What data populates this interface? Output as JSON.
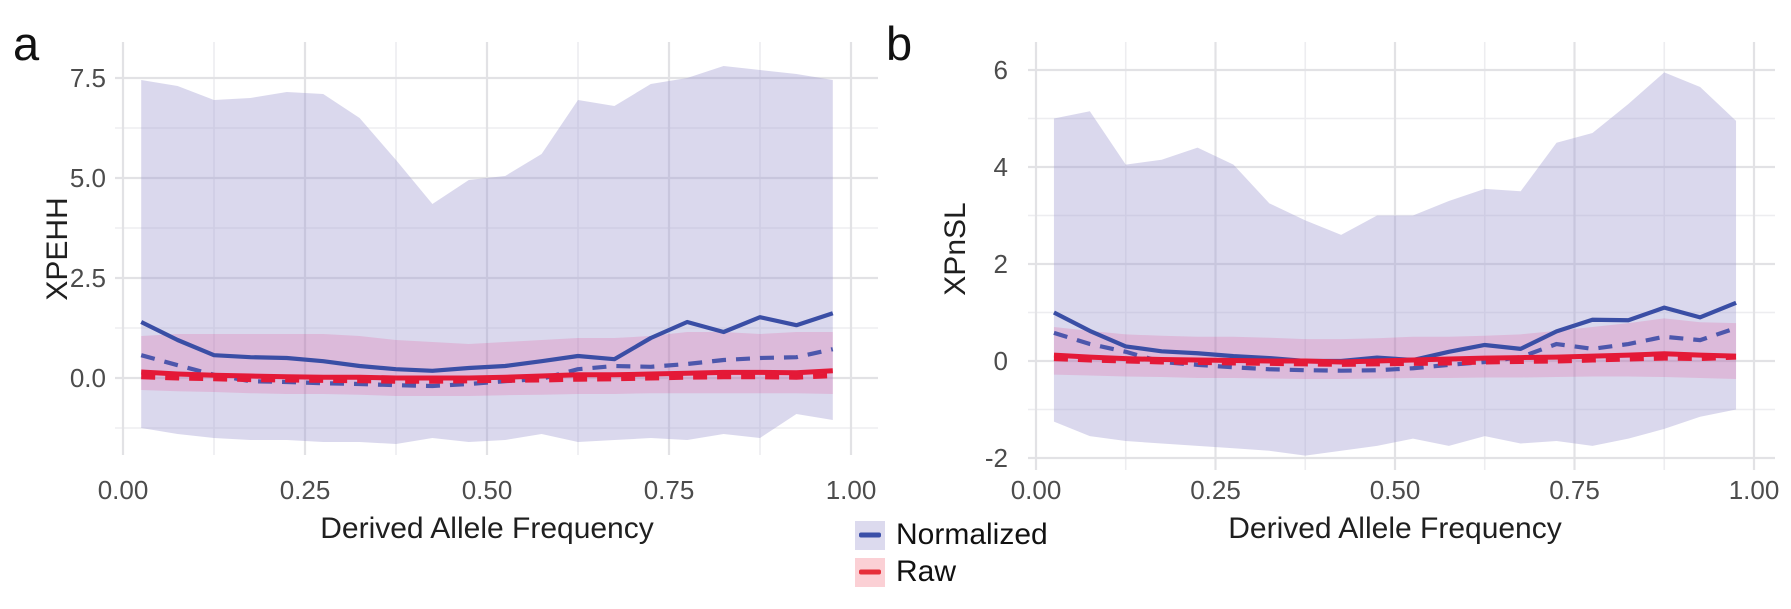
{
  "chart_data": {
    "type": "area",
    "x": [
      0.025,
      0.075,
      0.125,
      0.175,
      0.225,
      0.275,
      0.325,
      0.375,
      0.425,
      0.475,
      0.525,
      0.575,
      0.625,
      0.675,
      0.725,
      0.775,
      0.825,
      0.875,
      0.925,
      0.975
    ],
    "xlim": [
      0,
      1
    ],
    "grid": true,
    "legend_position": "bottom-center",
    "panels": [
      {
        "letter": "a",
        "ylabel": "XPEHH",
        "xlabel": "Derived Allele Frequency",
        "x_ticks": [
          0,
          0.25,
          0.5,
          0.75,
          1.0
        ],
        "x_tick_labels": [
          "0.00",
          "0.25",
          "0.50",
          "0.75",
          "1.00"
        ],
        "x_minor": [
          0.125,
          0.375,
          0.625,
          0.875
        ],
        "y_ticks": [
          0,
          2.5,
          5,
          7.5
        ],
        "y_tick_labels": [
          "0.0",
          "2.5",
          "5.0",
          "7.5"
        ],
        "y_minor": [
          -1.25,
          1.25,
          3.75,
          6.25
        ],
        "ylim": [
          -1.9,
          8.15
        ],
        "ribbons": [
          {
            "name": "normalized-range",
            "fill": "normalized_fill",
            "upper": [
              7.45,
              7.3,
              6.95,
              7.0,
              7.15,
              7.1,
              6.5,
              5.45,
              4.35,
              4.95,
              5.05,
              5.6,
              6.95,
              6.8,
              7.35,
              7.5,
              7.8,
              7.7,
              7.6,
              7.45
            ],
            "lower": [
              -1.25,
              -1.4,
              -1.5,
              -1.55,
              -1.55,
              -1.6,
              -1.6,
              -1.65,
              -1.5,
              -1.6,
              -1.55,
              -1.4,
              -1.6,
              -1.55,
              -1.5,
              -1.55,
              -1.4,
              -1.5,
              -0.9,
              -1.05
            ]
          },
          {
            "name": "raw-range",
            "fill": "raw_fill",
            "upper": [
              1.05,
              1.1,
              1.1,
              1.1,
              1.1,
              1.1,
              1.05,
              0.95,
              0.9,
              0.85,
              0.9,
              0.95,
              1.0,
              1.0,
              1.05,
              1.15,
              1.15,
              1.1,
              1.15,
              1.15
            ],
            "lower": [
              -0.3,
              -0.33,
              -0.35,
              -0.38,
              -0.4,
              -0.4,
              -0.42,
              -0.45,
              -0.45,
              -0.45,
              -0.43,
              -0.42,
              -0.4,
              -0.4,
              -0.38,
              -0.38,
              -0.38,
              -0.38,
              -0.38,
              -0.4
            ]
          }
        ],
        "lines": [
          {
            "name": "normalized-dashed",
            "color": "normalized_dashed",
            "style": "dashed",
            "width": 4.2,
            "values": [
              0.57,
              0.32,
              0.08,
              -0.08,
              -0.1,
              -0.13,
              -0.15,
              -0.18,
              -0.2,
              -0.15,
              -0.08,
              -0.02,
              0.22,
              0.3,
              0.28,
              0.35,
              0.45,
              0.5,
              0.52,
              0.72
            ]
          },
          {
            "name": "normalized-solid",
            "color": "normalized_line",
            "style": "solid",
            "width": 4.2,
            "values": [
              1.4,
              0.95,
              0.57,
              0.52,
              0.5,
              0.42,
              0.3,
              0.22,
              0.18,
              0.25,
              0.3,
              0.42,
              0.55,
              0.47,
              1.0,
              1.4,
              1.15,
              1.52,
              1.32,
              1.62
            ]
          },
          {
            "name": "raw-dashed",
            "color": "raw_line",
            "style": "dashed",
            "width": 5,
            "values": [
              0.03,
              0.0,
              -0.02,
              -0.04,
              -0.05,
              -0.06,
              -0.07,
              -0.08,
              -0.08,
              -0.07,
              -0.06,
              -0.05,
              -0.03,
              -0.02,
              0.0,
              0.02,
              0.03,
              0.03,
              0.02,
              0.06
            ]
          },
          {
            "name": "raw-solid",
            "color": "raw_line",
            "style": "solid",
            "width": 5,
            "values": [
              0.15,
              0.1,
              0.07,
              0.05,
              0.03,
              0.02,
              0.02,
              0.0,
              0.0,
              0.0,
              0.02,
              0.05,
              0.08,
              0.08,
              0.1,
              0.12,
              0.14,
              0.14,
              0.13,
              0.18
            ]
          }
        ]
      },
      {
        "letter": "b",
        "ylabel": "XPnSL",
        "xlabel": "Derived Allele Frequency",
        "x_ticks": [
          0,
          0.25,
          0.5,
          0.75,
          1.0
        ],
        "x_tick_labels": [
          "0.00",
          "0.25",
          "0.50",
          "0.75",
          "1.00"
        ],
        "x_minor": [
          0.125,
          0.375,
          0.625,
          0.875
        ],
        "y_ticks": [
          -2,
          0,
          2,
          4,
          6
        ],
        "y_tick_labels": [
          "-2",
          "0",
          "2",
          "4",
          "6"
        ],
        "y_minor": [
          -1,
          1,
          3,
          5
        ],
        "ylim": [
          -2.25,
          6.35
        ],
        "ribbons": [
          {
            "name": "normalized-range",
            "fill": "normalized_fill",
            "upper": [
              5.0,
              5.15,
              4.05,
              4.15,
              4.4,
              4.05,
              3.25,
              2.9,
              2.6,
              3.0,
              3.0,
              3.3,
              3.55,
              3.5,
              4.5,
              4.7,
              5.3,
              5.95,
              5.65,
              4.95
            ],
            "lower": [
              -1.25,
              -1.55,
              -1.65,
              -1.7,
              -1.75,
              -1.8,
              -1.85,
              -1.95,
              -1.85,
              -1.75,
              -1.6,
              -1.75,
              -1.55,
              -1.7,
              -1.65,
              -1.75,
              -1.6,
              -1.4,
              -1.15,
              -1.0
            ]
          },
          {
            "name": "raw-range",
            "fill": "raw_fill",
            "upper": [
              0.7,
              0.62,
              0.55,
              0.52,
              0.5,
              0.5,
              0.48,
              0.45,
              0.45,
              0.47,
              0.5,
              0.5,
              0.52,
              0.55,
              0.62,
              0.7,
              0.78,
              0.88,
              0.8,
              0.78
            ],
            "lower": [
              -0.28,
              -0.3,
              -0.32,
              -0.33,
              -0.35,
              -0.35,
              -0.36,
              -0.37,
              -0.37,
              -0.36,
              -0.35,
              -0.35,
              -0.34,
              -0.34,
              -0.33,
              -0.32,
              -0.32,
              -0.33,
              -0.35,
              -0.37
            ]
          }
        ],
        "lines": [
          {
            "name": "normalized-dashed",
            "color": "normalized_dashed",
            "style": "dashed",
            "width": 4.2,
            "values": [
              0.58,
              0.35,
              0.19,
              -0.02,
              -0.08,
              -0.13,
              -0.17,
              -0.19,
              -0.2,
              -0.19,
              -0.15,
              -0.08,
              -0.02,
              0.08,
              0.35,
              0.25,
              0.35,
              0.5,
              0.43,
              0.68
            ]
          },
          {
            "name": "normalized-solid",
            "color": "normalized_line",
            "style": "solid",
            "width": 4.2,
            "values": [
              1.0,
              0.62,
              0.3,
              0.2,
              0.16,
              0.1,
              0.06,
              0.0,
              0.0,
              0.07,
              0.02,
              0.19,
              0.33,
              0.25,
              0.61,
              0.85,
              0.84,
              1.1,
              0.9,
              1.2
            ]
          },
          {
            "name": "raw-dashed",
            "color": "raw_line",
            "style": "dashed",
            "width": 5,
            "values": [
              0.05,
              0.02,
              0.0,
              -0.02,
              -0.03,
              -0.04,
              -0.05,
              -0.06,
              -0.07,
              -0.06,
              -0.05,
              -0.04,
              -0.02,
              -0.01,
              0.0,
              0.02,
              0.04,
              0.06,
              0.05,
              0.08
            ]
          },
          {
            "name": "raw-solid",
            "color": "raw_line",
            "style": "solid",
            "width": 5,
            "values": [
              0.12,
              0.08,
              0.05,
              0.03,
              0.02,
              0.01,
              0.0,
              0.0,
              -0.02,
              0.0,
              0.02,
              0.04,
              0.06,
              0.07,
              0.08,
              0.1,
              0.12,
              0.15,
              0.12,
              0.1
            ]
          }
        ]
      }
    ],
    "legend": [
      {
        "label": "Normalized",
        "fill": "#dcdaee",
        "line": "#3a4fa8"
      },
      {
        "label": "Raw",
        "fill": "#fbd0d5",
        "line": "#e62f3a"
      }
    ],
    "colors": {
      "normalized_line": "#3a4ea5",
      "normalized_dashed": "#4d57ac",
      "raw_line": "#e41937",
      "normalized_fill": "rgba(159,153,207,0.38)",
      "raw_fill": "rgba(231,30,120,0.16)",
      "grid_major": "#e2e2e5",
      "grid_minor": "#ededf0",
      "tick_text": "#4c4c4c",
      "title_text": "#1f1f1f"
    }
  }
}
